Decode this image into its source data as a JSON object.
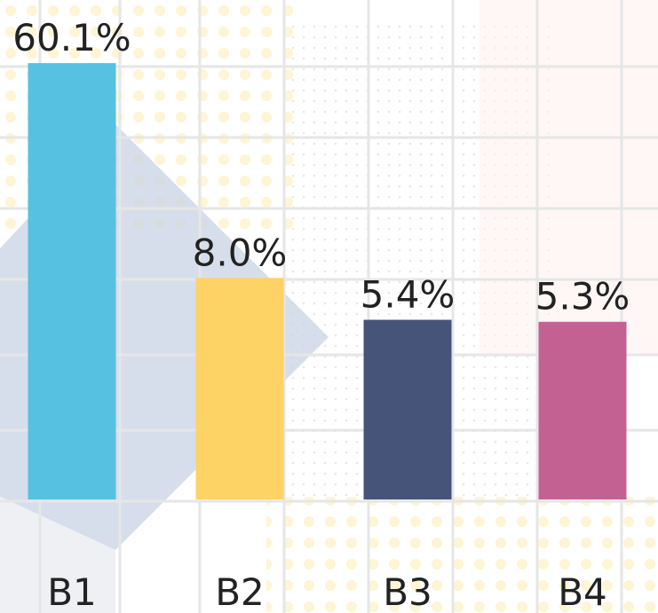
{
  "chart_data": {
    "type": "bar",
    "categories": [
      "B1",
      "B2",
      "B3",
      "B4"
    ],
    "values": [
      60.1,
      8.0,
      5.4,
      5.3
    ],
    "value_labels": [
      "60.1%",
      "8.0%",
      "5.4%",
      "5.3%"
    ],
    "colors": [
      "#56c1e0",
      "#fdd366",
      "#465479",
      "#c46193"
    ],
    "ylim": [
      1,
      100
    ],
    "log_scale": true
  }
}
